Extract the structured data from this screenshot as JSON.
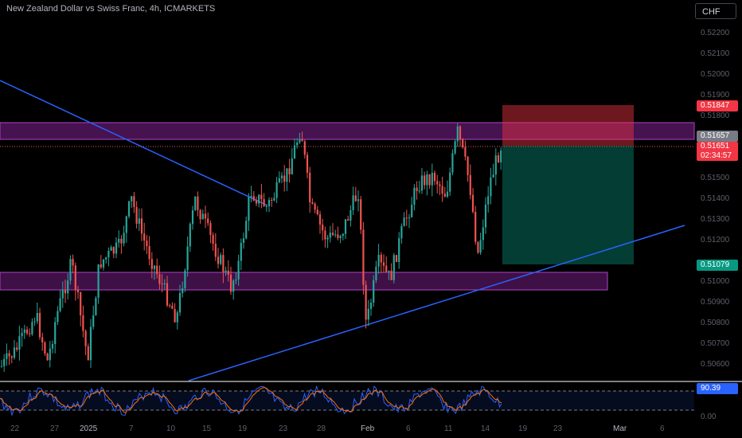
{
  "title": "New Zealand Dollar vs Swiss Franc, 4h, ICMARKETS",
  "currency": "CHF",
  "price_axis": [
    "0.52200",
    "0.52100",
    "0.52000",
    "0.51900",
    "0.51800",
    "0.51500",
    "0.51400",
    "0.51300",
    "0.51200",
    "0.51000",
    "0.50900",
    "0.50800",
    "0.50700",
    "0.50600"
  ],
  "time_axis": [
    "22",
    "27",
    "2025",
    "7",
    "10",
    "15",
    "19",
    "23",
    "28",
    "Feb",
    "6",
    "11",
    "14",
    "19",
    "23",
    "Mar",
    "6"
  ],
  "tags": {
    "stop": "0.51847",
    "entry": "0.51657",
    "last": "0.51651",
    "countdown": "02:34:57",
    "target": "0.51079"
  },
  "oscillator": {
    "value": "90.39",
    "zero": "0.00"
  },
  "colors": {
    "bull": "#26a69a",
    "bear": "#ef5350",
    "trendline": "#2962ff",
    "zone": "#9c27b0",
    "risk": "#f23645",
    "reward": "#089981"
  }
}
